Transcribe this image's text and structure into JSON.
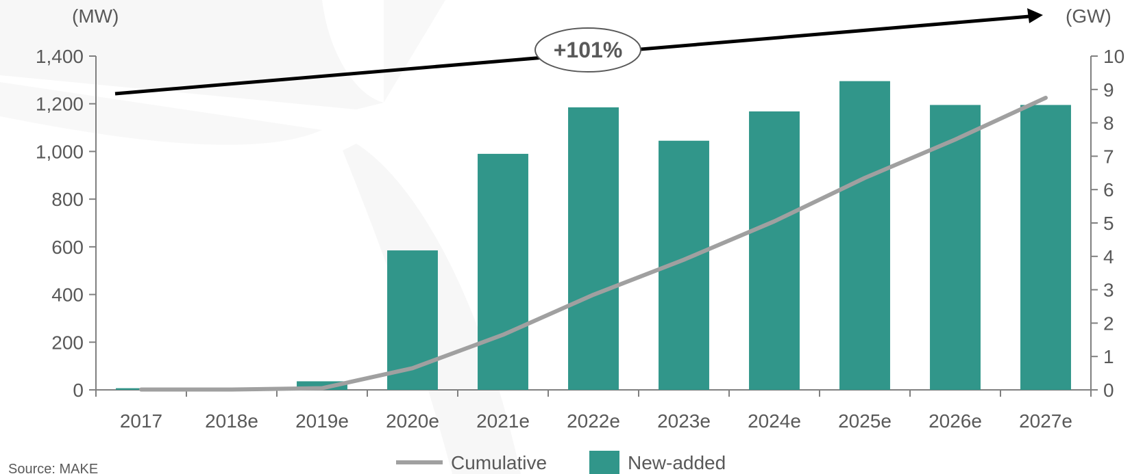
{
  "chart_data": {
    "type": "bar",
    "categories": [
      "2017",
      "2018e",
      "2019e",
      "2020e",
      "2021e",
      "2022e",
      "2023e",
      "2024e",
      "2025e",
      "2026e",
      "2027e"
    ],
    "series": [
      {
        "name": "New-added",
        "type": "bar",
        "axis": "left",
        "values": [
          7,
          3,
          36,
          585,
          990,
          1185,
          1045,
          1168,
          1295,
          1195,
          1195
        ]
      },
      {
        "name": "Cumulative",
        "type": "line",
        "axis": "right",
        "values": [
          0.01,
          0.01,
          0.05,
          0.65,
          1.65,
          2.85,
          3.9,
          5.05,
          6.35,
          7.5,
          8.75
        ]
      }
    ],
    "y_left": {
      "unit": "(MW)",
      "ylim": [
        0,
        1400
      ],
      "ticks": [
        0,
        200,
        400,
        600,
        800,
        1000,
        1200,
        1400
      ],
      "tick_labels": [
        "0",
        "200",
        "400",
        "600",
        "800",
        "1,000",
        "1,200",
        "1,400"
      ]
    },
    "y_right": {
      "unit": "(GW)",
      "ylim": [
        0,
        10
      ],
      "ticks": [
        0,
        1,
        2,
        3,
        4,
        5,
        6,
        7,
        8,
        9,
        10
      ],
      "tick_labels": [
        "0",
        "1",
        "2",
        "3",
        "4",
        "5",
        "6",
        "7",
        "8",
        "9",
        "10"
      ]
    },
    "annotation": "+101%",
    "legend_position": "bottom-center",
    "grid": false,
    "colors": {
      "bar": "#31968a",
      "line": "#a0a0a0",
      "arrow": "#000000"
    }
  },
  "source": "Source: MAKE"
}
